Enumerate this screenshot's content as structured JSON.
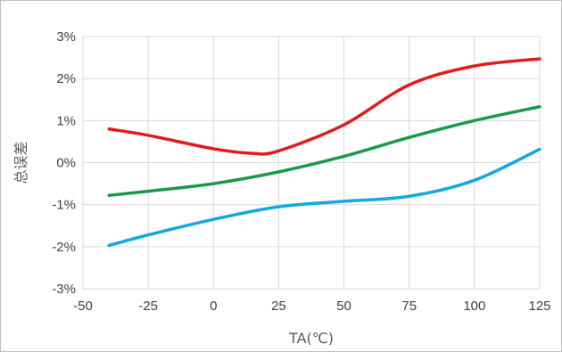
{
  "chart_data": {
    "type": "line",
    "title": "",
    "xlabel": "TA(℃)",
    "ylabel": "总误差",
    "xlim": [
      -50,
      125
    ],
    "ylim": [
      -3,
      3
    ],
    "x_ticks": [
      -50,
      -25,
      0,
      25,
      50,
      75,
      100,
      125
    ],
    "x_tick_labels": [
      "-50",
      "-25",
      "0",
      "25",
      "50",
      "75",
      "100",
      "125"
    ],
    "y_ticks": [
      -3,
      -2,
      -1,
      0,
      1,
      2,
      3
    ],
    "y_tick_labels": [
      "-3%",
      "-2%",
      "-1%",
      "0%",
      "1%",
      "2%",
      "3%"
    ],
    "grid": true,
    "legend": "none",
    "series": [
      {
        "color": "#e31a1c",
        "x": [
          -40,
          -25,
          0,
          15,
          25,
          50,
          75,
          100,
          125
        ],
        "y": [
          0.8,
          0.65,
          0.33,
          0.22,
          0.28,
          0.9,
          1.85,
          2.3,
          2.47
        ]
      },
      {
        "color": "#1a9a48",
        "x": [
          -40,
          -25,
          0,
          25,
          50,
          75,
          100,
          125
        ],
        "y": [
          -0.78,
          -0.68,
          -0.5,
          -0.22,
          0.15,
          0.6,
          1.0,
          1.33
        ]
      },
      {
        "color": "#12a8e0",
        "x": [
          -40,
          -25,
          0,
          25,
          50,
          75,
          100,
          125
        ],
        "y": [
          -1.97,
          -1.72,
          -1.35,
          -1.05,
          -0.92,
          -0.8,
          -0.42,
          0.32
        ]
      }
    ]
  }
}
